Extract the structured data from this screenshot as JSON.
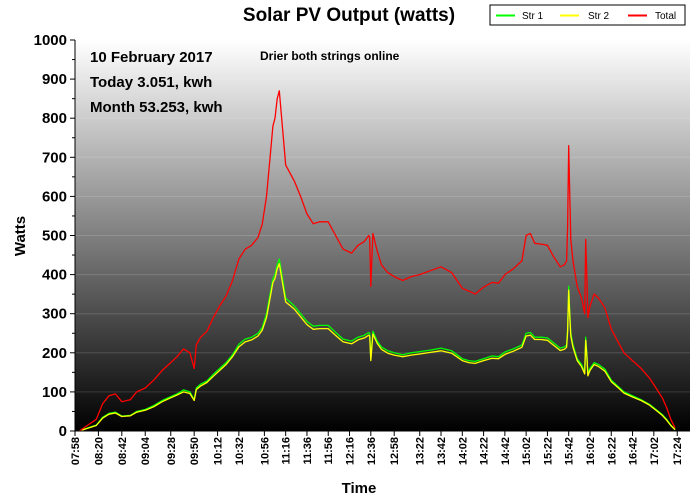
{
  "chart_data": {
    "type": "line",
    "title": "Solar PV Output (watts)",
    "xlabel": "Time",
    "ylabel": "Watts",
    "ylim": [
      0,
      1000
    ],
    "yticks": [
      0,
      100,
      200,
      300,
      400,
      500,
      600,
      700,
      800,
      900,
      1000
    ],
    "xlim": [
      "07:58",
      "17:36"
    ],
    "xticks": [
      "07:58",
      "08:20",
      "08:42",
      "09:04",
      "09:28",
      "09:50",
      "10:12",
      "10:32",
      "10:56",
      "11:16",
      "11:36",
      "11:56",
      "12:16",
      "12:36",
      "12:58",
      "13:22",
      "13:42",
      "14:02",
      "14:22",
      "14:42",
      "15:02",
      "15:22",
      "15:42",
      "16:02",
      "16:22",
      "16:42",
      "17:02",
      "17:24"
    ],
    "annotations": [
      "10 February 2017",
      "Today 3.051, kwh",
      "Month 53.253, kwh",
      "Drier both strings online"
    ],
    "legend": {
      "position": "top-right"
    },
    "background": "vertical gradient white to black",
    "series": [
      {
        "name": "Str 1",
        "color": "#00ff00",
        "x": [
          "08:02",
          "08:10",
          "08:18",
          "08:24",
          "08:30",
          "08:36",
          "08:42",
          "08:50",
          "08:56",
          "09:04",
          "09:12",
          "09:20",
          "09:28",
          "09:34",
          "09:40",
          "09:46",
          "09:50",
          "09:52",
          "09:56",
          "10:02",
          "10:08",
          "10:14",
          "10:20",
          "10:26",
          "10:32",
          "10:38",
          "10:44",
          "10:50",
          "10:54",
          "10:58",
          "11:02",
          "11:04",
          "11:06",
          "11:08",
          "11:10",
          "11:16",
          "11:24",
          "11:30",
          "11:36",
          "11:42",
          "11:48",
          "11:56",
          "12:04",
          "12:10",
          "12:18",
          "12:24",
          "12:30",
          "12:34",
          "12:35",
          "12:36",
          "12:38",
          "12:42",
          "12:46",
          "12:52",
          "12:58",
          "13:06",
          "13:14",
          "13:22",
          "13:32",
          "13:42",
          "13:52",
          "14:02",
          "14:08",
          "14:14",
          "14:22",
          "14:30",
          "14:36",
          "14:42",
          "14:50",
          "14:58",
          "15:02",
          "15:06",
          "15:10",
          "15:16",
          "15:22",
          "15:28",
          "15:34",
          "15:38",
          "15:40",
          "15:41",
          "15:42",
          "15:43",
          "15:44",
          "15:46",
          "15:50",
          "15:54",
          "15:57",
          "15:58",
          "15:59",
          "16:00",
          "16:02",
          "16:06",
          "16:10",
          "16:16",
          "16:22",
          "16:28",
          "16:34",
          "16:42",
          "16:50",
          "16:58",
          "17:04",
          "17:10",
          "17:14",
          "17:18",
          "17:22"
        ],
        "values": [
          0,
          8,
          15,
          35,
          45,
          48,
          38,
          40,
          50,
          55,
          65,
          78,
          88,
          95,
          105,
          100,
          80,
          110,
          120,
          128,
          145,
          160,
          175,
          195,
          222,
          235,
          240,
          250,
          265,
          300,
          360,
          390,
          400,
          425,
          440,
          340,
          320,
          300,
          280,
          268,
          270,
          270,
          250,
          235,
          230,
          240,
          245,
          252,
          250,
          185,
          255,
          230,
          215,
          205,
          200,
          195,
          200,
          203,
          207,
          212,
          205,
          185,
          180,
          178,
          185,
          192,
          190,
          202,
          210,
          220,
          250,
          252,
          240,
          240,
          238,
          225,
          212,
          215,
          220,
          260,
          370,
          300,
          250,
          220,
          185,
          170,
          150,
          240,
          200,
          145,
          160,
          175,
          170,
          158,
          130,
          115,
          100,
          90,
          80,
          68,
          55,
          42,
          30,
          15,
          4
        ]
      },
      {
        "name": "Str 2",
        "color": "#ffff00",
        "x": [
          "08:02",
          "08:10",
          "08:18",
          "08:24",
          "08:30",
          "08:36",
          "08:42",
          "08:50",
          "08:56",
          "09:04",
          "09:12",
          "09:20",
          "09:28",
          "09:34",
          "09:40",
          "09:46",
          "09:50",
          "09:52",
          "09:56",
          "10:02",
          "10:08",
          "10:14",
          "10:20",
          "10:26",
          "10:32",
          "10:38",
          "10:44",
          "10:50",
          "10:54",
          "10:58",
          "11:02",
          "11:04",
          "11:06",
          "11:08",
          "11:10",
          "11:16",
          "11:24",
          "11:30",
          "11:36",
          "11:42",
          "11:48",
          "11:56",
          "12:04",
          "12:10",
          "12:18",
          "12:24",
          "12:30",
          "12:34",
          "12:35",
          "12:36",
          "12:38",
          "12:42",
          "12:46",
          "12:52",
          "12:58",
          "13:06",
          "13:14",
          "13:22",
          "13:32",
          "13:42",
          "13:52",
          "14:02",
          "14:08",
          "14:14",
          "14:22",
          "14:30",
          "14:36",
          "14:42",
          "14:50",
          "14:58",
          "15:02",
          "15:06",
          "15:10",
          "15:16",
          "15:22",
          "15:28",
          "15:34",
          "15:38",
          "15:40",
          "15:41",
          "15:42",
          "15:43",
          "15:44",
          "15:46",
          "15:50",
          "15:54",
          "15:57",
          "15:58",
          "15:59",
          "16:00",
          "16:02",
          "16:06",
          "16:10",
          "16:16",
          "16:22",
          "16:28",
          "16:34",
          "16:42",
          "16:50",
          "16:58",
          "17:04",
          "17:10",
          "17:14",
          "17:18",
          "17:22"
        ],
        "values": [
          0,
          7,
          14,
          33,
          43,
          46,
          37,
          39,
          48,
          53,
          62,
          75,
          85,
          92,
          100,
          96,
          78,
          106,
          115,
          124,
          140,
          155,
          170,
          190,
          215,
          228,
          233,
          243,
          258,
          290,
          350,
          380,
          390,
          415,
          428,
          330,
          312,
          292,
          272,
          260,
          262,
          262,
          242,
          228,
          223,
          233,
          238,
          245,
          243,
          180,
          248,
          224,
          209,
          199,
          194,
          190,
          194,
          197,
          201,
          205,
          199,
          180,
          175,
          173,
          180,
          186,
          185,
          196,
          204,
          214,
          243,
          245,
          234,
          234,
          232,
          219,
          206,
          209,
          214,
          252,
          360,
          292,
          243,
          214,
          180,
          165,
          146,
          232,
          194,
          141,
          155,
          170,
          165,
          153,
          126,
          112,
          97,
          87,
          78,
          66,
          53,
          40,
          28,
          14,
          3
        ]
      },
      {
        "name": "Total",
        "color": "#ff0000",
        "x": [
          "08:02",
          "08:10",
          "08:18",
          "08:24",
          "08:30",
          "08:36",
          "08:42",
          "08:50",
          "08:56",
          "09:04",
          "09:12",
          "09:20",
          "09:28",
          "09:34",
          "09:40",
          "09:46",
          "09:50",
          "09:52",
          "09:56",
          "10:02",
          "10:08",
          "10:14",
          "10:20",
          "10:26",
          "10:32",
          "10:38",
          "10:44",
          "10:50",
          "10:54",
          "10:58",
          "11:02",
          "11:04",
          "11:06",
          "11:08",
          "11:10",
          "11:16",
          "11:24",
          "11:30",
          "11:36",
          "11:42",
          "11:48",
          "11:56",
          "12:04",
          "12:10",
          "12:18",
          "12:24",
          "12:30",
          "12:34",
          "12:35",
          "12:36",
          "12:38",
          "12:42",
          "12:46",
          "12:52",
          "12:58",
          "13:06",
          "13:14",
          "13:22",
          "13:32",
          "13:42",
          "13:52",
          "14:02",
          "14:08",
          "14:14",
          "14:22",
          "14:30",
          "14:36",
          "14:42",
          "14:50",
          "14:58",
          "15:02",
          "15:06",
          "15:10",
          "15:16",
          "15:22",
          "15:28",
          "15:34",
          "15:38",
          "15:40",
          "15:41",
          "15:42",
          "15:43",
          "15:44",
          "15:46",
          "15:50",
          "15:54",
          "15:57",
          "15:58",
          "15:59",
          "16:00",
          "16:02",
          "16:06",
          "16:10",
          "16:16",
          "16:22",
          "16:28",
          "16:34",
          "16:42",
          "16:50",
          "16:58",
          "17:04",
          "17:10",
          "17:14",
          "17:18",
          "17:22"
        ],
        "values": [
          0,
          15,
          30,
          70,
          90,
          95,
          75,
          80,
          100,
          110,
          130,
          155,
          175,
          190,
          210,
          200,
          160,
          220,
          240,
          255,
          290,
          320,
          345,
          385,
          440,
          465,
          475,
          495,
          530,
          600,
          720,
          780,
          800,
          850,
          870,
          680,
          640,
          600,
          555,
          530,
          535,
          535,
          495,
          465,
          455,
          475,
          485,
          500,
          495,
          370,
          505,
          460,
          425,
          405,
          395,
          385,
          395,
          400,
          410,
          420,
          405,
          365,
          358,
          350,
          368,
          380,
          378,
          400,
          415,
          435,
          500,
          505,
          480,
          478,
          475,
          445,
          420,
          425,
          435,
          520,
          730,
          600,
          490,
          435,
          370,
          340,
          300,
          490,
          400,
          290,
          320,
          350,
          340,
          315,
          260,
          230,
          200,
          180,
          160,
          135,
          110,
          85,
          60,
          30,
          8
        ]
      }
    ]
  }
}
